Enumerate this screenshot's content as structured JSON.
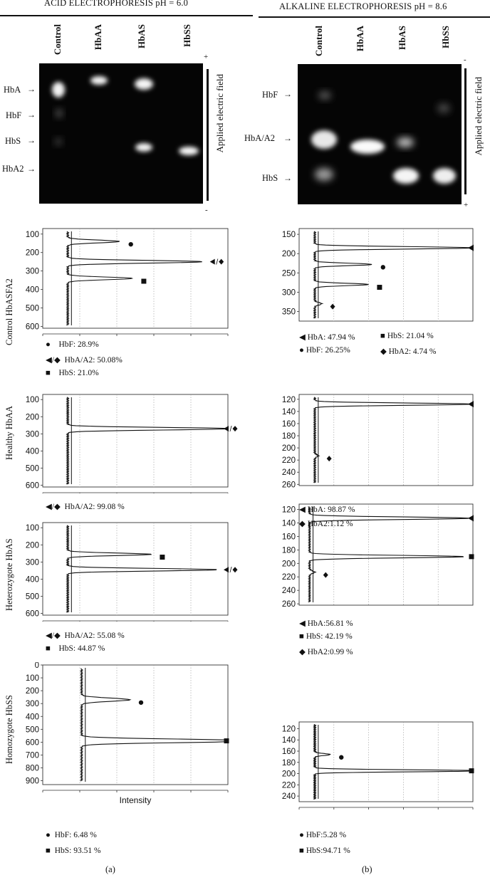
{
  "left_header": "ACID ELECTROPHORESIS pH = 6.0",
  "right_header": "ALKALINE ELECTROPHORESIS pH = 8.6",
  "left_gel": {
    "lanes": [
      "Control",
      "HbAA",
      "HbAS",
      "HbSS"
    ],
    "bands": [
      "HbA",
      "HbF",
      "HbS",
      "HbA2"
    ],
    "plus": "+",
    "minus": "-",
    "field": "Applied electric field"
  },
  "right_gel": {
    "lanes": [
      "Control",
      "HbAA",
      "HbAS",
      "HbSS"
    ],
    "bands": [
      "HbF",
      "HbA/A2",
      "HbS"
    ],
    "plus": "+",
    "minus": "-",
    "field": "Applied electric field"
  },
  "rows": [
    "Control HbASFA2",
    "Healthy HbAA",
    "Heterozygote HbAS",
    "Homozygote HbSS"
  ],
  "axis_label": "Intensity",
  "captions": [
    "(a)",
    "(b)"
  ],
  "legends": {
    "a1": [
      "HbF: 28.9%",
      "HbA/A2: 50.08%",
      "HbS: 21.0%"
    ],
    "b1": [
      "HbA: 47.94 %",
      "HbS: 21.04 %",
      "HbF: 26.25%",
      "HbA2: 4.74 %"
    ],
    "a2": [
      "HbA/A2: 99.08 %"
    ],
    "b2": [
      "HbA: 98.87 %",
      "HbA2:1.12 %"
    ],
    "a3": [
      "HbA/A2: 55.08 %",
      "HbS: 44.87 %"
    ],
    "b3": [
      "HbA:56.81 %",
      "HbS: 42.19 %",
      "HbA2:0.99 %"
    ],
    "a4": [
      "HbF: 6.48 %",
      "HbS: 93.51 %"
    ],
    "b4": [
      "HbF:5.28 %",
      "HbS:94.71 %"
    ]
  },
  "chart_data": [
    {
      "type": "line",
      "panel": "a1",
      "yticks": [
        100,
        200,
        300,
        400,
        500,
        600
      ],
      "peaks": [
        {
          "label": "HbF",
          "y": 140,
          "intensity": 0.28
        },
        {
          "label": "HbA/A2",
          "y": 250,
          "intensity": 0.73
        },
        {
          "label": "HbS",
          "y": 340,
          "intensity": 0.35
        }
      ]
    },
    {
      "type": "line",
      "panel": "b1",
      "yticks": [
        150,
        200,
        250,
        300,
        350
      ],
      "peaks": [
        {
          "label": "HbA",
          "y": 185,
          "intensity": 0.91
        },
        {
          "label": "HbF",
          "y": 228,
          "intensity": 0.33
        },
        {
          "label": "HbS",
          "y": 280,
          "intensity": 0.31
        },
        {
          "label": "HbA2",
          "y": 330,
          "intensity": 0.04
        }
      ]
    },
    {
      "type": "line",
      "panel": "a2",
      "yticks": [
        100,
        200,
        300,
        400,
        500,
        600
      ],
      "peaks": [
        {
          "label": "HbA/A2",
          "y": 270,
          "intensity": 0.88
        }
      ]
    },
    {
      "type": "line",
      "panel": "b2",
      "yticks": [
        120,
        140,
        160,
        180,
        200,
        220,
        240,
        260
      ],
      "peaks": [
        {
          "label": "HbA",
          "y": 128,
          "intensity": 0.91
        },
        {
          "label": "HbA2",
          "y": 213,
          "intensity": 0.02
        }
      ]
    },
    {
      "type": "line",
      "panel": "a3",
      "yticks": [
        100,
        200,
        300,
        400,
        500,
        600
      ],
      "peaks": [
        {
          "label": "HbS",
          "y": 255,
          "intensity": 0.45
        },
        {
          "label": "HbA/A2",
          "y": 345,
          "intensity": 0.81
        }
      ]
    },
    {
      "type": "line",
      "panel": "b3",
      "yticks": [
        120,
        140,
        160,
        180,
        200,
        220,
        240,
        260
      ],
      "peaks": [
        {
          "label": "HbA",
          "y": 133,
          "intensity": 0.92
        },
        {
          "label": "HbS",
          "y": 190,
          "intensity": 0.89
        },
        {
          "label": "HbA2",
          "y": 213,
          "intensity": 0.03
        }
      ]
    },
    {
      "type": "line",
      "panel": "a4",
      "yticks": [
        0,
        100,
        200,
        300,
        400,
        500,
        600,
        700,
        800,
        900
      ],
      "peaks": [
        {
          "label": "HbF",
          "y": 270,
          "intensity": 0.26
        },
        {
          "label": "HbS",
          "y": 590,
          "intensity": 0.95
        }
      ]
    },
    {
      "type": "line",
      "panel": "b4",
      "yticks": [
        120,
        140,
        160,
        180,
        200,
        220,
        240
      ],
      "peaks": [
        {
          "label": "HbF",
          "y": 166,
          "intensity": 0.09
        },
        {
          "label": "HbS",
          "y": 195,
          "intensity": 0.95
        }
      ]
    }
  ]
}
